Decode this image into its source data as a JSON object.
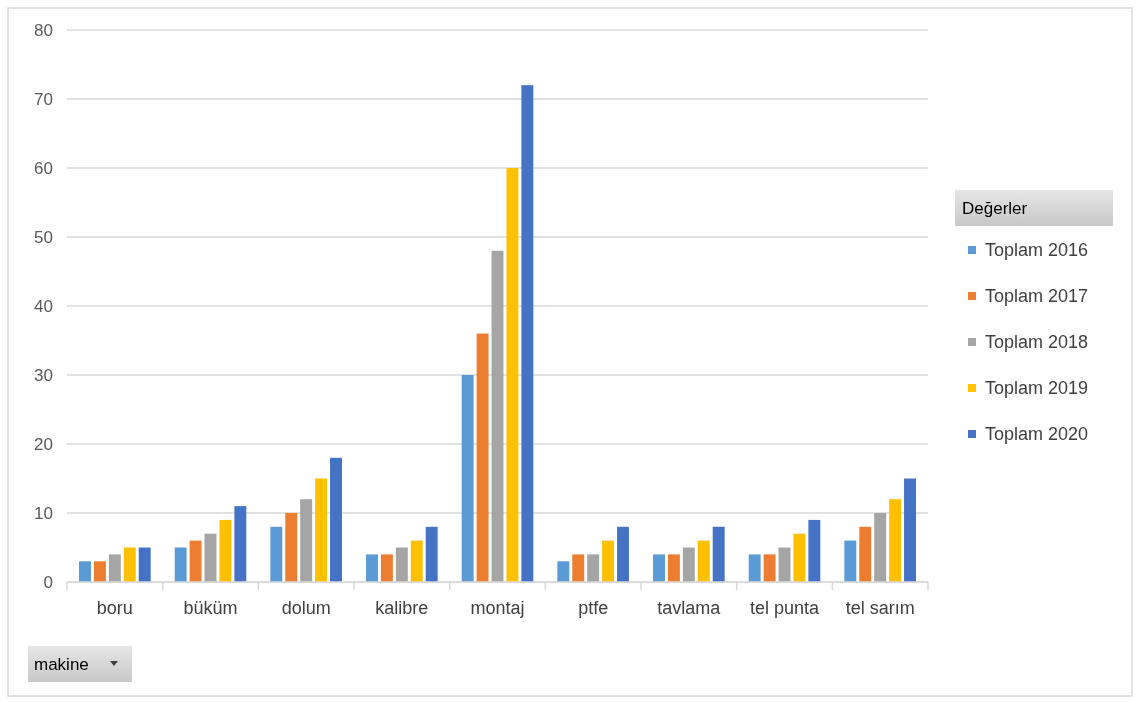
{
  "chart_data": {
    "type": "bar",
    "categories": [
      "boru",
      "büküm",
      "dolum",
      "kalibre",
      "montaj",
      "ptfe",
      "tavlama",
      "tel punta",
      "tel sarım"
    ],
    "series": [
      {
        "name": "Toplam 2016",
        "color": "#5b9bd5",
        "values": [
          3,
          5,
          8,
          4,
          30,
          3,
          4,
          4,
          6
        ]
      },
      {
        "name": "Toplam 2017",
        "color": "#ed7d31",
        "values": [
          3,
          6,
          10,
          4,
          36,
          4,
          4,
          4,
          8
        ]
      },
      {
        "name": "Toplam 2018",
        "color": "#a5a5a5",
        "values": [
          4,
          7,
          12,
          5,
          48,
          4,
          5,
          5,
          10
        ]
      },
      {
        "name": "Toplam 2019",
        "color": "#ffc000",
        "values": [
          5,
          9,
          15,
          6,
          60,
          6,
          6,
          7,
          12
        ]
      },
      {
        "name": "Toplam 2020",
        "color": "#4472c4",
        "values": [
          5,
          11,
          18,
          8,
          72,
          8,
          8,
          9,
          15
        ]
      }
    ],
    "ylim": [
      0,
      80
    ],
    "yticks": [
      0,
      10,
      20,
      30,
      40,
      50,
      60,
      70,
      80
    ],
    "grid": "y",
    "legend": "right",
    "legend_title": "Değerler",
    "annotations": [
      "makine"
    ]
  }
}
